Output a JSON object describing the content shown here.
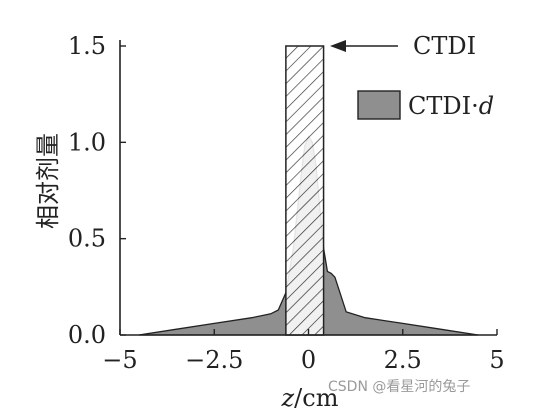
{
  "chart_data": {
    "type": "area",
    "title": "",
    "xlabel": "z/cm",
    "ylabel": "相对剂量",
    "xlim": [
      -5,
      5
    ],
    "ylim": [
      0,
      1.5
    ],
    "xticks": [
      -5,
      -2.5,
      0,
      2.5,
      5
    ],
    "xtick_labels": [
      "−5",
      "−2.5",
      "0",
      "2.5",
      "5"
    ],
    "yticks": [
      0.0,
      0.5,
      1.0,
      1.5
    ],
    "ytick_labels": [
      "0.0",
      "0.5",
      "1.0",
      "1.5"
    ],
    "grid": false,
    "legend_position": "right",
    "series": [
      {
        "name": "CTDI·d",
        "kind": "filled-area",
        "fill": "#8f8f8f",
        "x": [
          -4.5,
          -3.5,
          -2.5,
          -1.5,
          -1.0,
          -0.8,
          -0.6,
          -0.4,
          -0.2,
          -0.1,
          0.0,
          0.1,
          0.2,
          0.3,
          0.4,
          0.5,
          0.6,
          0.7,
          0.8,
          1.0,
          1.5,
          2.5,
          3.5,
          4.5
        ],
        "y": [
          0.0,
          0.03,
          0.06,
          0.09,
          0.11,
          0.13,
          0.22,
          0.45,
          0.82,
          0.98,
          1.03,
          1.0,
          0.88,
          0.66,
          0.45,
          0.33,
          0.32,
          0.3,
          0.24,
          0.12,
          0.09,
          0.06,
          0.03,
          0.0
        ]
      },
      {
        "name": "CTDI",
        "kind": "hatched-rectangle",
        "x_start": -0.6,
        "x_end": 0.4,
        "value": 1.5
      }
    ],
    "annotations": [
      {
        "text": "CTDI",
        "points_to": "CTDI"
      }
    ]
  },
  "watermark": "CSDN @看星河的兔子"
}
